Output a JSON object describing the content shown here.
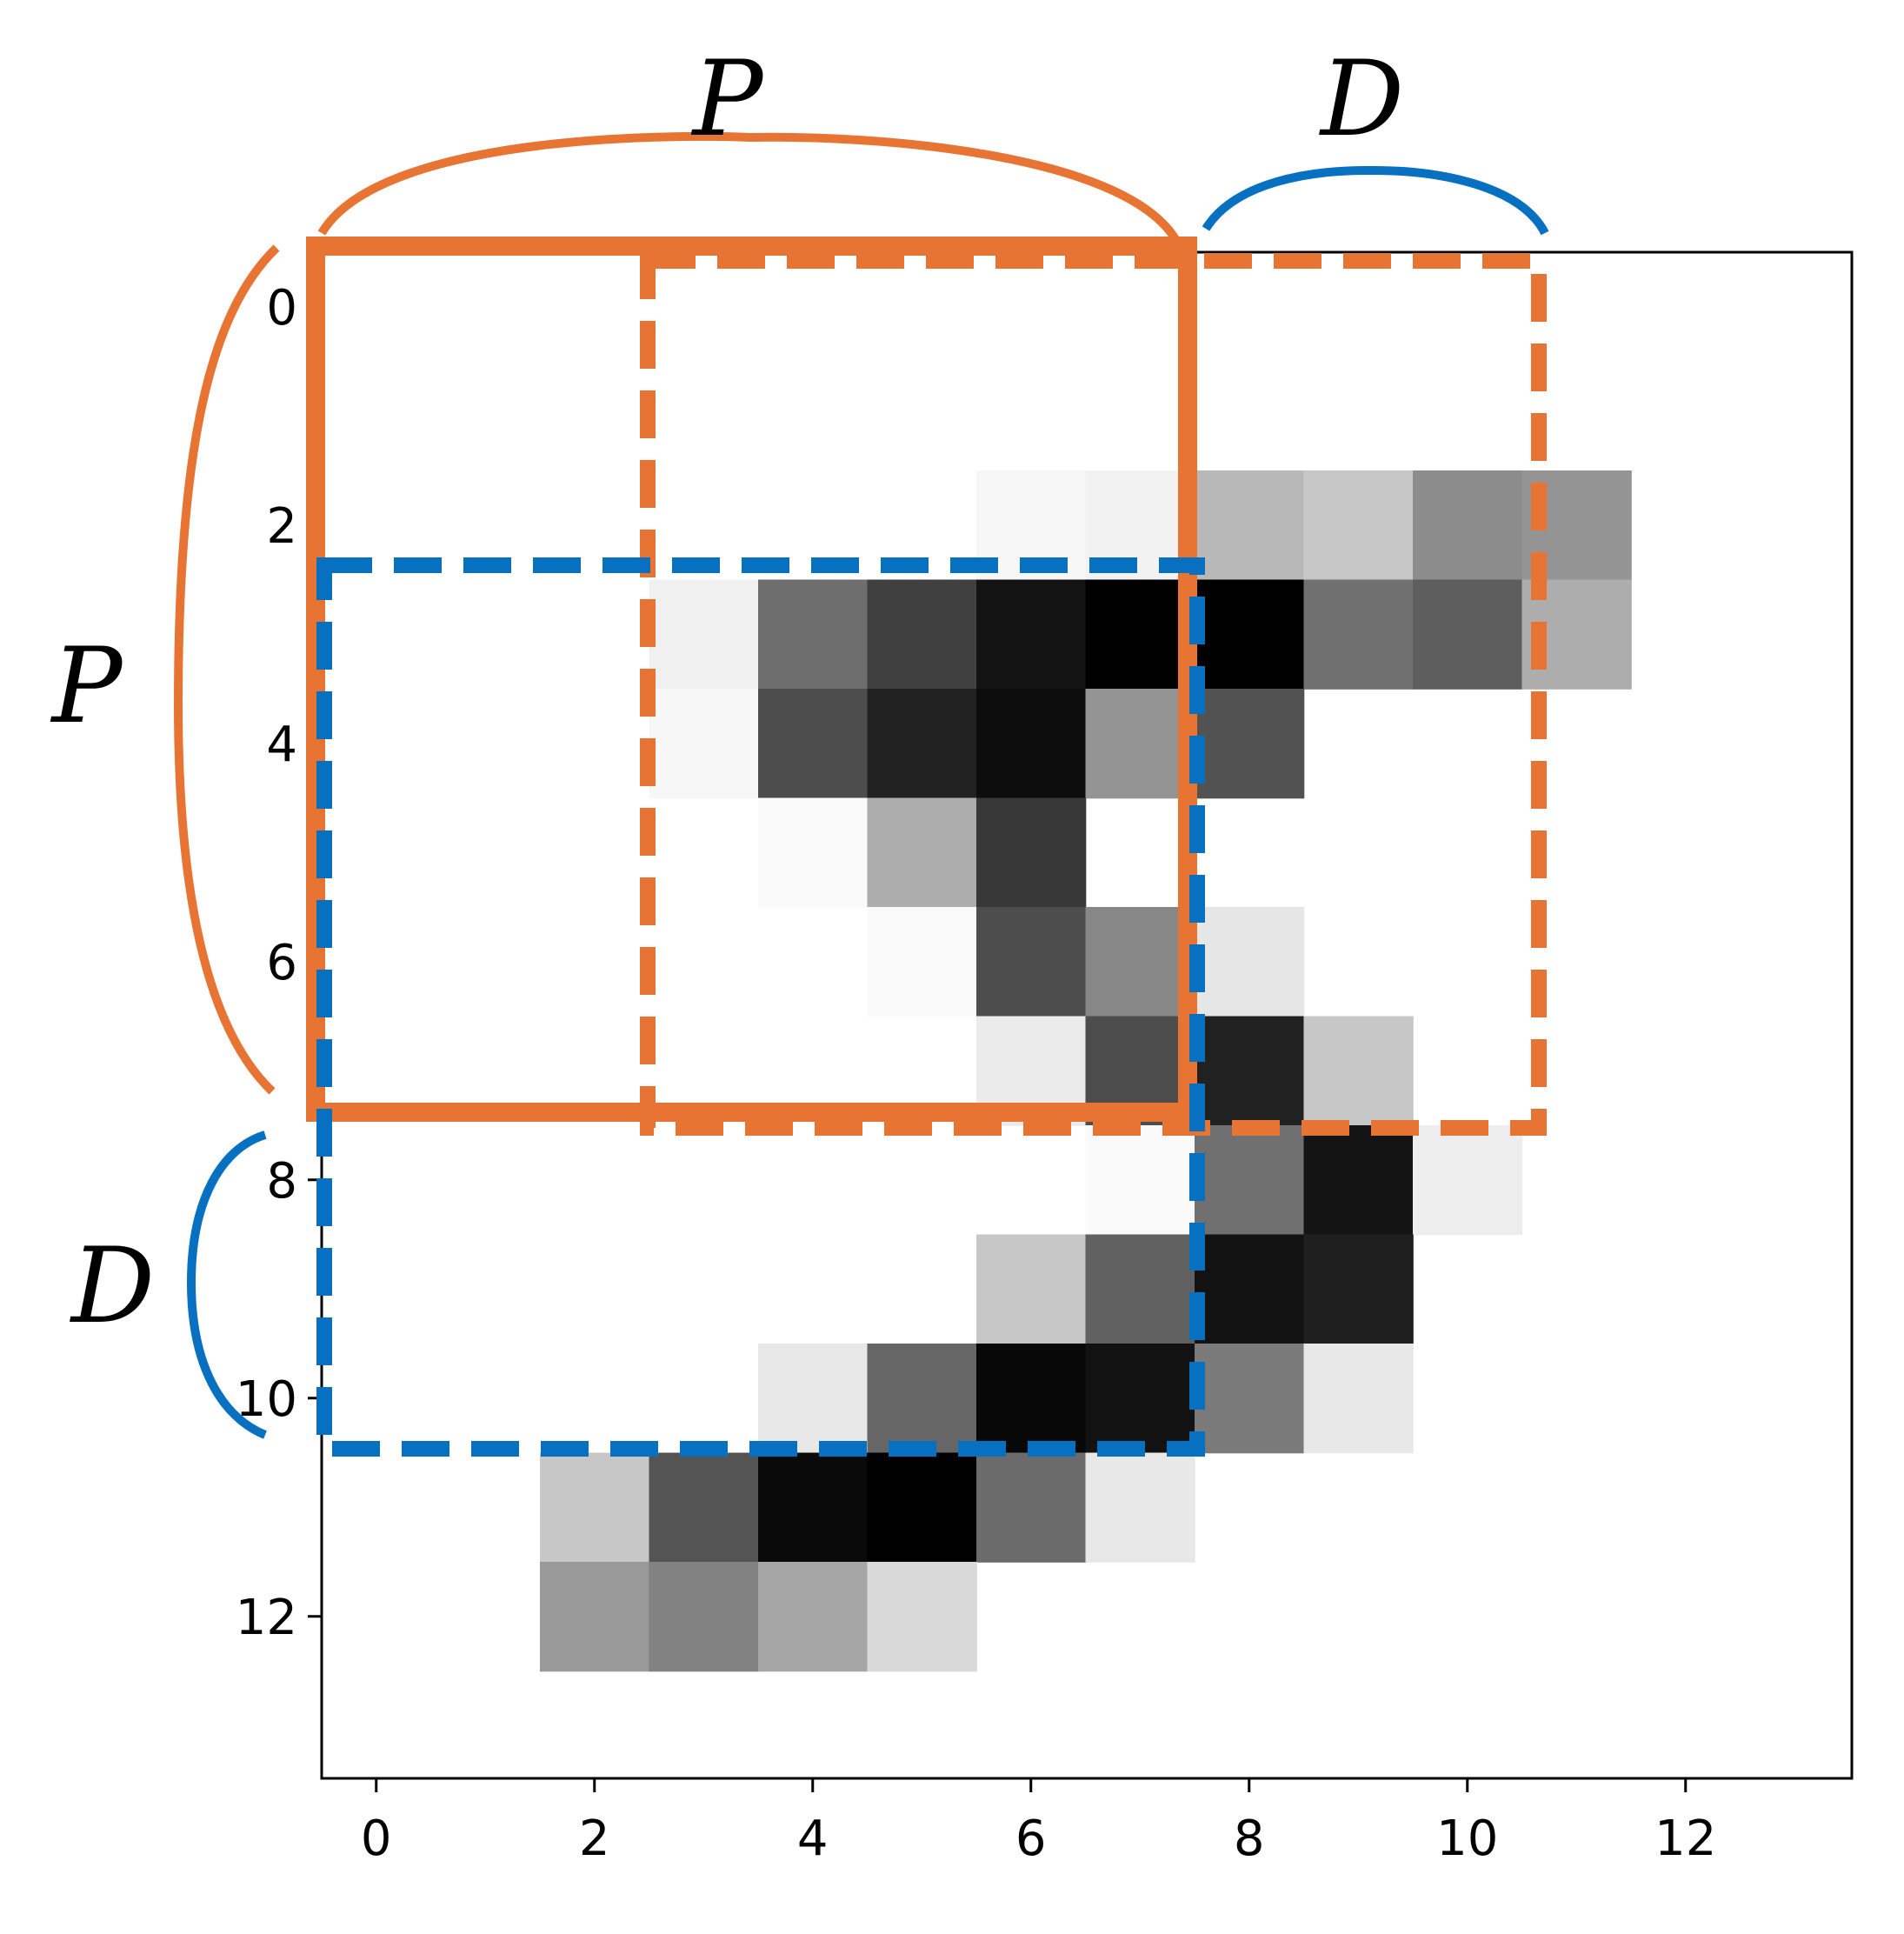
{
  "image_grid": {
    "rows": [
      [
        0,
        0,
        0,
        0,
        0,
        0,
        0,
        0,
        0,
        0,
        0,
        0,
        0,
        0
      ],
      [
        0,
        0,
        0,
        0,
        0,
        0,
        0,
        0,
        0,
        0,
        0,
        0,
        0,
        0
      ],
      [
        0,
        0,
        0,
        0,
        0,
        0,
        0.03,
        0.05,
        0.28,
        0.22,
        0.45,
        0.42,
        0,
        0
      ],
      [
        0,
        0,
        0,
        0.06,
        0.57,
        0.75,
        0.92,
        1,
        1,
        0.56,
        0.63,
        0.32,
        0,
        0
      ],
      [
        0,
        0,
        0,
        0.03,
        0.7,
        0.87,
        0.95,
        0.42,
        0.68,
        0,
        0,
        0,
        0,
        0
      ],
      [
        0,
        0,
        0,
        0,
        0.02,
        0.32,
        0.78,
        0,
        0,
        0,
        0,
        0,
        0,
        0
      ],
      [
        0,
        0,
        0,
        0,
        0,
        0.02,
        0.7,
        0.47,
        0.1,
        0,
        0,
        0,
        0,
        0
      ],
      [
        0,
        0,
        0,
        0,
        0,
        0,
        0.08,
        0.7,
        0.87,
        0.22,
        0,
        0,
        0,
        0
      ],
      [
        0,
        0,
        0,
        0,
        0,
        0,
        0,
        0.02,
        0.56,
        0.92,
        0.07,
        0,
        0,
        0
      ],
      [
        0,
        0,
        0,
        0,
        0,
        0,
        0.22,
        0.62,
        0.93,
        0.88,
        0,
        0,
        0,
        0
      ],
      [
        0,
        0,
        0,
        0,
        0.09,
        0.6,
        0.97,
        0.93,
        0.52,
        0.09,
        0,
        0,
        0,
        0
      ],
      [
        0,
        0,
        0.22,
        0.67,
        0.96,
        1,
        0.58,
        0.09,
        0,
        0,
        0,
        0,
        0,
        0
      ],
      [
        0,
        0,
        0.4,
        0.49,
        0.35,
        0.15,
        0,
        0,
        0,
        0,
        0,
        0,
        0,
        0
      ],
      [
        0,
        0,
        0,
        0,
        0,
        0,
        0,
        0,
        0,
        0,
        0,
        0,
        0,
        0
      ]
    ]
  },
  "axes": {
    "x_ticks": [
      "0",
      "2",
      "4",
      "6",
      "8",
      "10",
      "12"
    ],
    "y_ticks": [
      "0",
      "2",
      "4",
      "6",
      "8",
      "10",
      "12"
    ]
  },
  "annotations": {
    "top_p_label": "P",
    "top_d_label": "D",
    "left_p_label": "P",
    "left_d_label": "D"
  },
  "colors": {
    "orange": "#E87434",
    "blue": "#0770C0",
    "axis": "#000000"
  }
}
